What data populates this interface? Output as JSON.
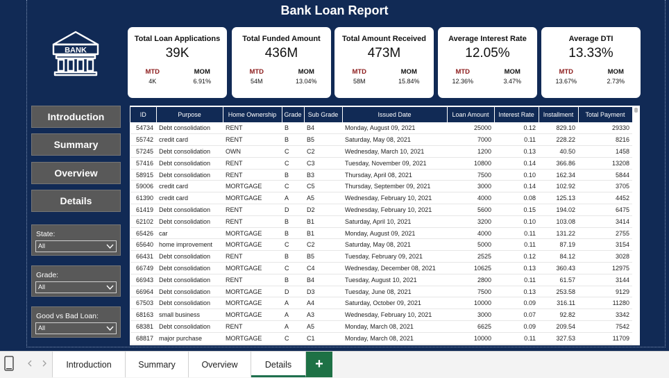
{
  "report": {
    "title": "Bank Loan Report",
    "logo_text": "BANK"
  },
  "kpis": [
    {
      "title": "Total Loan Applications",
      "value": "39K",
      "mtd_label": "MTD",
      "mtd_value": "4K",
      "mom_label": "MOM",
      "mom_value": "6.91%"
    },
    {
      "title": "Total Funded Amount",
      "value": "436M",
      "mtd_label": "MTD",
      "mtd_value": "54M",
      "mom_label": "MOM",
      "mom_value": "13.04%"
    },
    {
      "title": "Total Amount Received",
      "value": "473M",
      "mtd_label": "MTD",
      "mtd_value": "58M",
      "mom_label": "MOM",
      "mom_value": "15.84%"
    },
    {
      "title": "Average Interest Rate",
      "value": "12.05%",
      "mtd_label": "MTD",
      "mtd_value": "12.36%",
      "mom_label": "MOM",
      "mom_value": "3.47%"
    },
    {
      "title": "Average DTI",
      "value": "13.33%",
      "mtd_label": "MTD",
      "mtd_value": "13.67%",
      "mom_label": "MOM",
      "mom_value": "2.73%"
    }
  ],
  "nav": [
    "Introduction",
    "Summary",
    "Overview",
    "Details"
  ],
  "slicers": [
    {
      "label": "State:",
      "value": "All"
    },
    {
      "label": "Grade:",
      "value": "All"
    },
    {
      "label": "Good vs Bad Loan:",
      "value": "All"
    }
  ],
  "table": {
    "columns": [
      "ID",
      "Purpose",
      "Home Ownership",
      "Grade",
      "Sub Grade",
      "Issued Date",
      "Loan Amount",
      "Interest Rate",
      "Installment",
      "Total Payment"
    ],
    "rows": [
      [
        "54734",
        "Debt consolidation",
        "RENT",
        "B",
        "B4",
        "Monday, August 09, 2021",
        "25000",
        "0.12",
        "829.10",
        "29330"
      ],
      [
        "55742",
        "credit card",
        "RENT",
        "B",
        "B5",
        "Saturday, May 08, 2021",
        "7000",
        "0.11",
        "228.22",
        "8216"
      ],
      [
        "57245",
        "Debt consolidation",
        "OWN",
        "C",
        "C2",
        "Wednesday, March 10, 2021",
        "1200",
        "0.13",
        "40.50",
        "1458"
      ],
      [
        "57416",
        "Debt consolidation",
        "RENT",
        "C",
        "C3",
        "Tuesday, November 09, 2021",
        "10800",
        "0.14",
        "366.86",
        "13208"
      ],
      [
        "58915",
        "Debt consolidation",
        "RENT",
        "B",
        "B3",
        "Thursday, April 08, 2021",
        "7500",
        "0.10",
        "162.34",
        "5844"
      ],
      [
        "59006",
        "credit card",
        "MORTGAGE",
        "C",
        "C5",
        "Thursday, September 09, 2021",
        "3000",
        "0.14",
        "102.92",
        "3705"
      ],
      [
        "61390",
        "credit card",
        "MORTGAGE",
        "A",
        "A5",
        "Wednesday, February 10, 2021",
        "4000",
        "0.08",
        "125.13",
        "4452"
      ],
      [
        "61419",
        "Debt consolidation",
        "RENT",
        "D",
        "D2",
        "Wednesday, February 10, 2021",
        "5600",
        "0.15",
        "194.02",
        "6475"
      ],
      [
        "62102",
        "Debt consolidation",
        "RENT",
        "B",
        "B1",
        "Saturday, April 10, 2021",
        "3200",
        "0.10",
        "103.08",
        "3414"
      ],
      [
        "65426",
        "car",
        "MORTGAGE",
        "B",
        "B1",
        "Monday, August 09, 2021",
        "4000",
        "0.11",
        "131.22",
        "2755"
      ],
      [
        "65640",
        "home improvement",
        "MORTGAGE",
        "C",
        "C2",
        "Saturday, May 08, 2021",
        "5000",
        "0.11",
        "87.19",
        "3154"
      ],
      [
        "66431",
        "Debt consolidation",
        "RENT",
        "B",
        "B5",
        "Tuesday, February 09, 2021",
        "2525",
        "0.12",
        "84.12",
        "3028"
      ],
      [
        "66749",
        "Debt consolidation",
        "MORTGAGE",
        "C",
        "C4",
        "Wednesday, December 08, 2021",
        "10625",
        "0.13",
        "360.43",
        "12975"
      ],
      [
        "66943",
        "Debt consolidation",
        "RENT",
        "B",
        "B4",
        "Tuesday, August 10, 2021",
        "2800",
        "0.11",
        "61.57",
        "3144"
      ],
      [
        "66964",
        "Debt consolidation",
        "MORTGAGE",
        "D",
        "D3",
        "Tuesday, June 08, 2021",
        "7500",
        "0.13",
        "253.58",
        "9129"
      ],
      [
        "67503",
        "Debt consolidation",
        "MORTGAGE",
        "A",
        "A4",
        "Saturday, October 09, 2021",
        "10000",
        "0.09",
        "316.11",
        "11280"
      ],
      [
        "68163",
        "small business",
        "MORTGAGE",
        "A",
        "A3",
        "Wednesday, February 10, 2021",
        "3000",
        "0.07",
        "92.82",
        "3342"
      ],
      [
        "68381",
        "Debt consolidation",
        "RENT",
        "A",
        "A5",
        "Monday, March 08, 2021",
        "6625",
        "0.09",
        "209.54",
        "7542"
      ],
      [
        "68817",
        "major purchase",
        "MORTGAGE",
        "C",
        "C1",
        "Monday, March 08, 2021",
        "10000",
        "0.11",
        "327.53",
        "11709"
      ]
    ]
  },
  "tabs": [
    "Introduction",
    "Summary",
    "Overview",
    "Details"
  ],
  "active_tab": "Details",
  "add_tab_symbol": "+",
  "colors": {
    "background": "#112a55",
    "nav_button": "#595959",
    "mtd": "#8b1a1a",
    "active_tab_accent": "#1e7145"
  }
}
